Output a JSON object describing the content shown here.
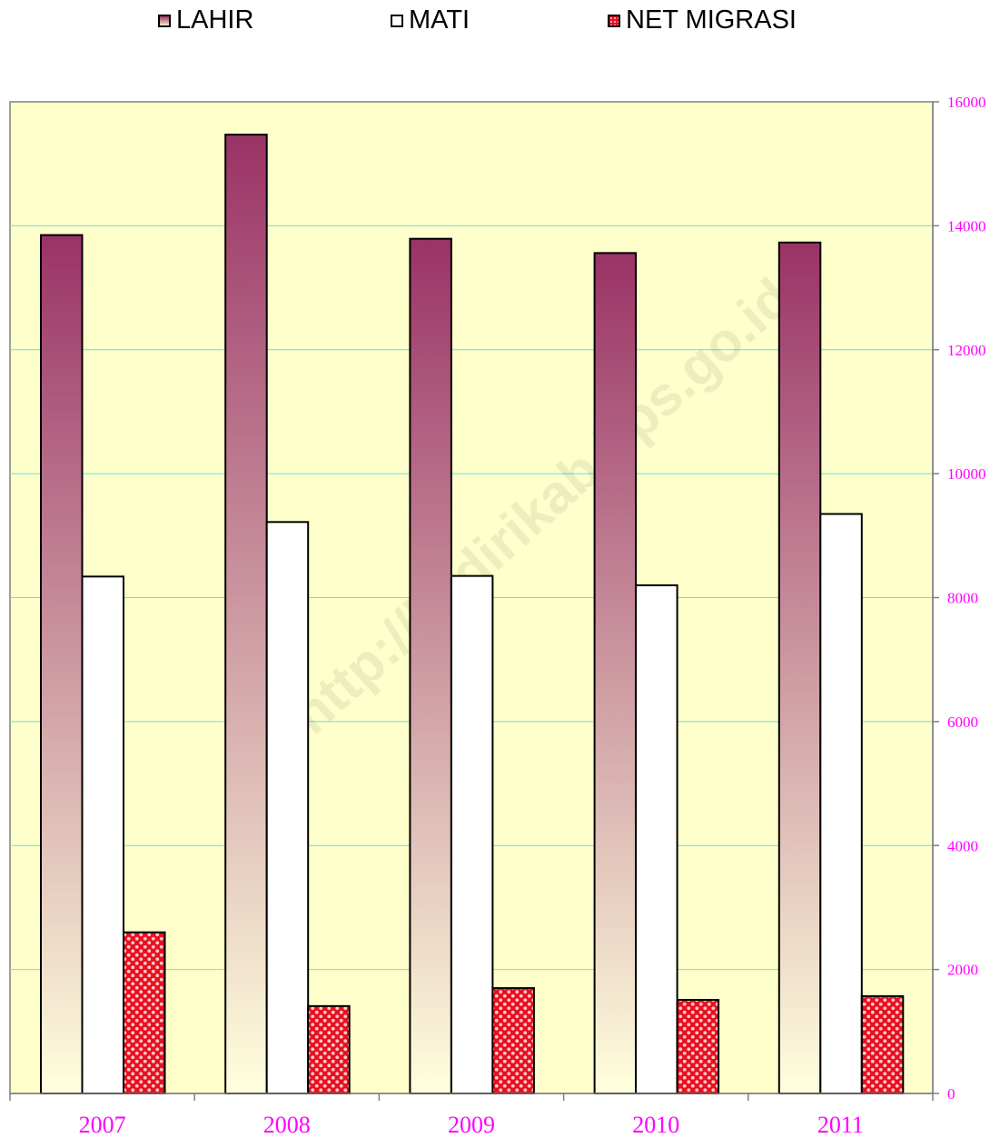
{
  "colors": {
    "plot_background": "#ffffcc",
    "gridline": "#66e0e0",
    "axis_text": "#ff00ff",
    "lahir_top": "#9a3366",
    "lahir_bottom": "#ffffdd",
    "mati": "#ffffff",
    "net_migrasi": "#e81020",
    "net_migrasi_dot": "#ffc8c8"
  },
  "watermark": "http://kedirikab.bps.go.id",
  "chart_data": {
    "type": "bar",
    "categories": [
      "2007",
      "2008",
      "2009",
      "2010",
      "2011"
    ],
    "series": [
      {
        "name": "LAHIR",
        "values": [
          13850,
          15470,
          13790,
          13560,
          13730
        ]
      },
      {
        "name": "MATI",
        "values": [
          8340,
          9220,
          8350,
          8200,
          9350
        ]
      },
      {
        "name": "NET MIGRASI",
        "values": [
          2600,
          1410,
          1700,
          1510,
          1570
        ]
      }
    ],
    "y_axis_position": "right",
    "ylim": [
      0,
      16000
    ],
    "yticks": [
      "0",
      "2000",
      "4000",
      "6000",
      "8000",
      "10000",
      "12000",
      "14000",
      "16000"
    ],
    "grid": true,
    "legend_position": "top"
  }
}
